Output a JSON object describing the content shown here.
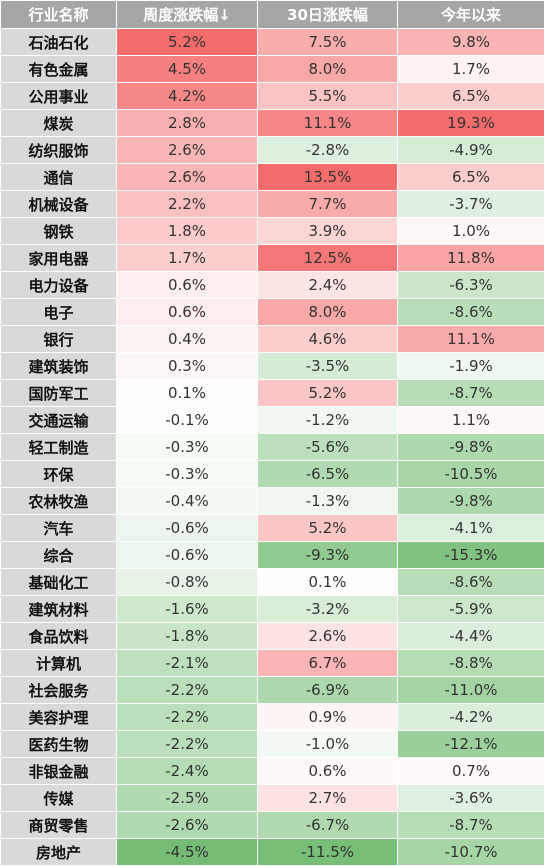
{
  "chart_data": {
    "type": "heatmap",
    "columns": [
      "行业名称",
      "周度涨跌幅↓",
      "30日涨跌幅",
      "今年以来"
    ],
    "rows": [
      {
        "name": "石油石化",
        "values": [
          "5.2%",
          "7.5%",
          "9.8%"
        ]
      },
      {
        "name": "有色金属",
        "values": [
          "4.5%",
          "8.0%",
          "1.7%"
        ]
      },
      {
        "name": "公用事业",
        "values": [
          "4.2%",
          "5.5%",
          "6.5%"
        ]
      },
      {
        "name": "煤炭",
        "values": [
          "2.8%",
          "11.1%",
          "19.3%"
        ]
      },
      {
        "name": "纺织服饰",
        "values": [
          "2.6%",
          "-2.8%",
          "-4.9%"
        ]
      },
      {
        "name": "通信",
        "values": [
          "2.6%",
          "13.5%",
          "6.5%"
        ]
      },
      {
        "name": "机械设备",
        "values": [
          "2.2%",
          "7.7%",
          "-3.7%"
        ]
      },
      {
        "name": "钢铁",
        "values": [
          "1.8%",
          "3.9%",
          "1.0%"
        ]
      },
      {
        "name": "家用电器",
        "values": [
          "1.7%",
          "12.5%",
          "11.8%"
        ]
      },
      {
        "name": "电力设备",
        "values": [
          "0.6%",
          "2.4%",
          "-6.3%"
        ]
      },
      {
        "name": "电子",
        "values": [
          "0.6%",
          "8.0%",
          "-8.6%"
        ]
      },
      {
        "name": "银行",
        "values": [
          "0.4%",
          "4.6%",
          "11.1%"
        ]
      },
      {
        "name": "建筑装饰",
        "values": [
          "0.3%",
          "-3.5%",
          "-1.9%"
        ]
      },
      {
        "name": "国防军工",
        "values": [
          "0.1%",
          "5.2%",
          "-8.7%"
        ]
      },
      {
        "name": "交通运输",
        "values": [
          "-0.1%",
          "-1.2%",
          "1.1%"
        ]
      },
      {
        "name": "轻工制造",
        "values": [
          "-0.3%",
          "-5.6%",
          "-9.8%"
        ]
      },
      {
        "name": "环保",
        "values": [
          "-0.3%",
          "-6.5%",
          "-10.5%"
        ]
      },
      {
        "name": "农林牧渔",
        "values": [
          "-0.4%",
          "-1.3%",
          "-9.8%"
        ]
      },
      {
        "name": "汽车",
        "values": [
          "-0.6%",
          "5.2%",
          "-4.1%"
        ]
      },
      {
        "name": "综合",
        "values": [
          "-0.6%",
          "-9.3%",
          "-15.3%"
        ]
      },
      {
        "name": "基础化工",
        "values": [
          "-0.8%",
          "0.1%",
          "-8.6%"
        ]
      },
      {
        "name": "建筑材料",
        "values": [
          "-1.6%",
          "-3.2%",
          "-5.9%"
        ]
      },
      {
        "name": "食品饮料",
        "values": [
          "-1.8%",
          "2.6%",
          "-4.4%"
        ]
      },
      {
        "name": "计算机",
        "values": [
          "-2.1%",
          "6.7%",
          "-8.8%"
        ]
      },
      {
        "name": "社会服务",
        "values": [
          "-2.2%",
          "-6.9%",
          "-11.0%"
        ]
      },
      {
        "name": "美容护理",
        "values": [
          "-2.2%",
          "0.9%",
          "-4.2%"
        ]
      },
      {
        "name": "医药生物",
        "values": [
          "-2.2%",
          "-1.0%",
          "-12.1%"
        ]
      },
      {
        "name": "非银金融",
        "values": [
          "-2.4%",
          "0.6%",
          "0.7%"
        ]
      },
      {
        "name": "传媒",
        "values": [
          "-2.5%",
          "2.7%",
          "-3.6%"
        ]
      },
      {
        "name": "商贸零售",
        "values": [
          "-2.6%",
          "-6.7%",
          "-8.7%"
        ]
      },
      {
        "name": "房地产",
        "values": [
          "-4.5%",
          "-11.5%",
          "-10.7%"
        ]
      }
    ],
    "color_scale": {
      "positive": "#f56c6c",
      "neutral": "#ffffff",
      "negative": "#5fb35f"
    }
  }
}
